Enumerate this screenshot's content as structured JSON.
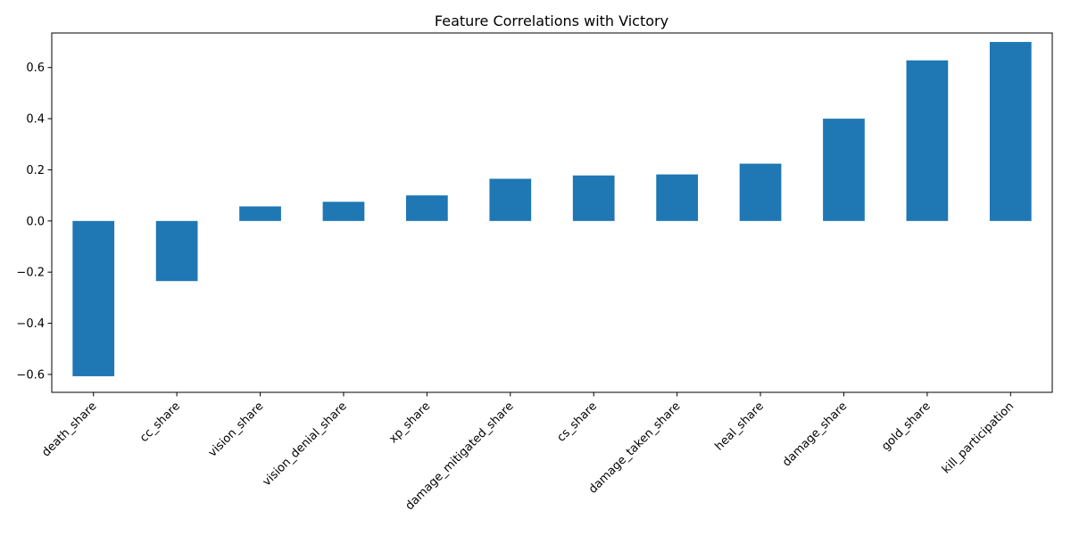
{
  "chart_data": {
    "type": "bar",
    "title": "Feature Correlations with Victory",
    "xlabel": "",
    "ylabel": "",
    "categories": [
      "death_share",
      "cc_share",
      "vision_share",
      "vision_denial_share",
      "xp_share",
      "damage_mitigated_share",
      "cs_share",
      "damage_taken_share",
      "heal_share",
      "damage_share",
      "gold_share",
      "kill_participation"
    ],
    "values": [
      -0.607,
      -0.235,
      0.057,
      0.075,
      0.1,
      0.165,
      0.178,
      0.182,
      0.224,
      0.4,
      0.628,
      0.7
    ],
    "ylim": [
      -0.67,
      0.735
    ],
    "yticks": [
      -0.6,
      -0.4,
      -0.2,
      0.0,
      0.2,
      0.4,
      0.6
    ],
    "ytick_labels": [
      "−0.6",
      "−0.4",
      "−0.2",
      "0.0",
      "0.2",
      "0.4",
      "0.6"
    ],
    "bar_color": "#1f77b4",
    "grid": false,
    "legend": "none"
  }
}
